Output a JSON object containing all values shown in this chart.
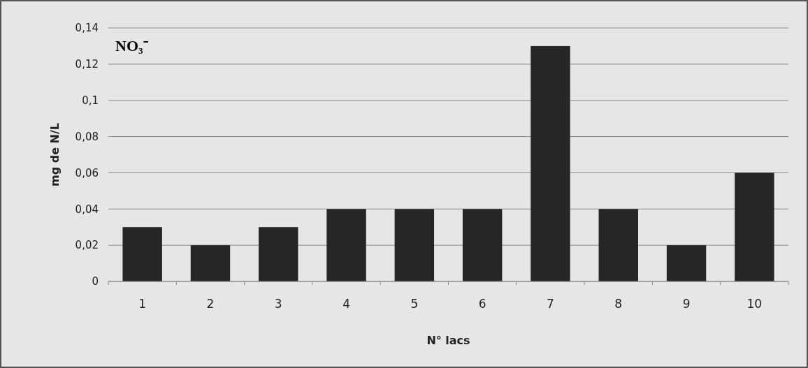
{
  "chart_data": {
    "type": "bar",
    "title": "NO₃⁻",
    "xlabel": "N° lacs",
    "ylabel": "mg de N/L",
    "categories": [
      "1",
      "2",
      "3",
      "4",
      "5",
      "6",
      "7",
      "8",
      "9",
      "10"
    ],
    "values": [
      0.03,
      0.02,
      0.03,
      0.04,
      0.04,
      0.04,
      0.13,
      0.04,
      0.02,
      0.06
    ],
    "color": "#262626",
    "ylim": [
      0,
      0.14
    ],
    "yticks": [
      0,
      {
        "value": 0.02,
        "label": "0,02"
      },
      {
        "value": 0.04,
        "label": "0,04"
      },
      {
        "value": 0.06,
        "label": "0,06"
      },
      {
        "value": 0.08,
        "label": "0,08"
      },
      {
        "value": 0.1,
        "label": "0,1"
      },
      {
        "value": 0.12,
        "label": "0,12"
      },
      {
        "value": 0.14,
        "label": "0,14"
      }
    ],
    "grid": "y"
  }
}
